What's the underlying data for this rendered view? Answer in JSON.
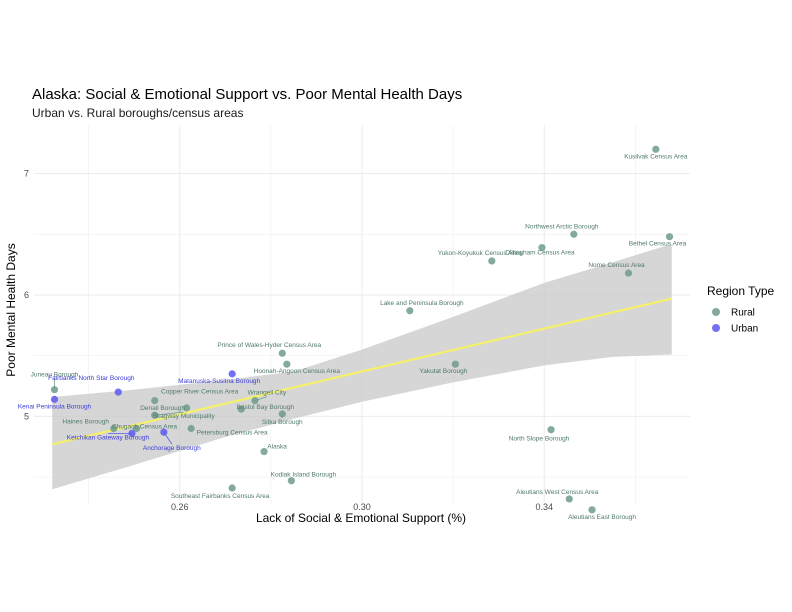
{
  "chart_data": {
    "type": "scatter",
    "title": "Alaska: Social & Emotional Support vs. Poor Mental Health Days",
    "subtitle": "Urban vs. Rural boroughs/census areas",
    "xlabel": "Lack of Social & Emotional Support (%)",
    "ylabel": "Poor Mental Health Days",
    "xlim": [
      0.228,
      0.372
    ],
    "ylim": [
      4.27,
      7.4
    ],
    "x_ticks": [
      0.26,
      0.3,
      0.34
    ],
    "x_tick_labels": [
      "0.26",
      "0.30",
      "0.34"
    ],
    "y_ticks": [
      5,
      6,
      7
    ],
    "y_tick_labels": [
      "5",
      "6",
      "7"
    ],
    "grid": true,
    "legend": {
      "title": "Region Type",
      "position": "right",
      "entries": [
        {
          "name": "Rural",
          "color": "#6e9b89"
        },
        {
          "name": "Urban",
          "color": "#5b5bf0"
        }
      ]
    },
    "trend": {
      "color": "#f5f06a",
      "ribbon_color": "#cccccc",
      "x": [
        0.232,
        0.368
      ],
      "y": [
        4.77,
        5.97
      ],
      "ribbon_lower": [
        [
          0.232,
          4.4
        ],
        [
          0.25,
          4.6
        ],
        [
          0.27,
          4.83
        ],
        [
          0.285,
          4.98
        ],
        [
          0.3,
          5.12
        ],
        [
          0.32,
          5.28
        ],
        [
          0.34,
          5.42
        ],
        [
          0.355,
          5.49
        ],
        [
          0.368,
          5.51
        ]
      ],
      "ribbon_upper": [
        [
          0.232,
          5.16
        ],
        [
          0.25,
          5.22
        ],
        [
          0.27,
          5.3
        ],
        [
          0.285,
          5.37
        ],
        [
          0.3,
          5.55
        ],
        [
          0.32,
          5.82
        ],
        [
          0.34,
          6.1
        ],
        [
          0.355,
          6.27
        ],
        [
          0.368,
          6.42
        ]
      ]
    },
    "points": [
      {
        "name": "Kusilvak Census Area",
        "x": 0.3645,
        "y": 7.2,
        "group": "Rural"
      },
      {
        "name": "Northwest Arctic Borough",
        "x": 0.3465,
        "y": 6.5,
        "group": "Rural"
      },
      {
        "name": "Bethel Census Area",
        "x": 0.3675,
        "y": 6.48,
        "group": "Rural"
      },
      {
        "name": "Dillingham Census Area",
        "x": 0.3395,
        "y": 6.39,
        "group": "Rural"
      },
      {
        "name": "Yukon-Koyukuk Census Area",
        "x": 0.3285,
        "y": 6.28,
        "group": "Rural"
      },
      {
        "name": "Nome Census Area",
        "x": 0.3585,
        "y": 6.18,
        "group": "Rural"
      },
      {
        "name": "Lake and Peninsula Borough",
        "x": 0.3105,
        "y": 5.87,
        "group": "Rural"
      },
      {
        "name": "Prince of Wales-Hyder Census Area",
        "x": 0.2825,
        "y": 5.52,
        "group": "Rural"
      },
      {
        "name": "Hoonah-Angoon Census Area",
        "x": 0.2835,
        "y": 5.43,
        "group": "Rural"
      },
      {
        "name": "Yakutat Borough",
        "x": 0.3205,
        "y": 5.43,
        "group": "Rural"
      },
      {
        "name": "Juneau Borough",
        "x": 0.2325,
        "y": 5.22,
        "group": "Rural"
      },
      {
        "name": "Fairbanks North Star Borough",
        "x": 0.2465,
        "y": 5.2,
        "group": "Urban"
      },
      {
        "name": "Kenai Peninsula Borough",
        "x": 0.2325,
        "y": 5.14,
        "group": "Urban"
      },
      {
        "name": "Matanuska-Susitna Borough",
        "x": 0.2715,
        "y": 5.35,
        "group": "Urban"
      },
      {
        "name": "Copper River Census Area",
        "x": 0.2545,
        "y": 5.13,
        "group": "Rural"
      },
      {
        "name": "Wrangell City",
        "x": 0.2765,
        "y": 5.13,
        "group": "Rural"
      },
      {
        "name": "Denali Borough",
        "x": 0.2615,
        "y": 5.07,
        "group": "Rural"
      },
      {
        "name": "Bristol Bay Borough",
        "x": 0.2735,
        "y": 5.06,
        "group": "Rural"
      },
      {
        "name": "Skagway Municipality",
        "x": 0.2545,
        "y": 5.01,
        "group": "Rural"
      },
      {
        "name": "Sitka Borough",
        "x": 0.2825,
        "y": 5.02,
        "group": "Rural"
      },
      {
        "name": "Haines Borough",
        "x": 0.2455,
        "y": 4.9,
        "group": "Rural"
      },
      {
        "name": "Chugach Census Area",
        "x": 0.2505,
        "y": 4.9,
        "group": "Rural"
      },
      {
        "name": "Petersburg Census Area",
        "x": 0.2625,
        "y": 4.9,
        "group": "Rural"
      },
      {
        "name": "Anchorage Borough",
        "x": 0.2565,
        "y": 4.87,
        "group": "Urban"
      },
      {
        "name": "Ketchikan Gateway Borough",
        "x": 0.2495,
        "y": 4.86,
        "group": "Urban"
      },
      {
        "name": "North Slope Borough",
        "x": 0.3415,
        "y": 4.89,
        "group": "Rural"
      },
      {
        "name": "Alaska",
        "x": 0.2785,
        "y": 4.71,
        "group": "Rural"
      },
      {
        "name": "Kodiak Island Borough",
        "x": 0.2845,
        "y": 4.47,
        "group": "Rural"
      },
      {
        "name": "Southeast Fairbanks Census Area",
        "x": 0.2715,
        "y": 4.41,
        "group": "Rural"
      },
      {
        "name": "Aleutians West Census Area",
        "x": 0.3455,
        "y": 4.32,
        "group": "Rural"
      },
      {
        "name": "Aleutians East Borough",
        "x": 0.3505,
        "y": 4.23,
        "group": "Rural"
      }
    ]
  }
}
